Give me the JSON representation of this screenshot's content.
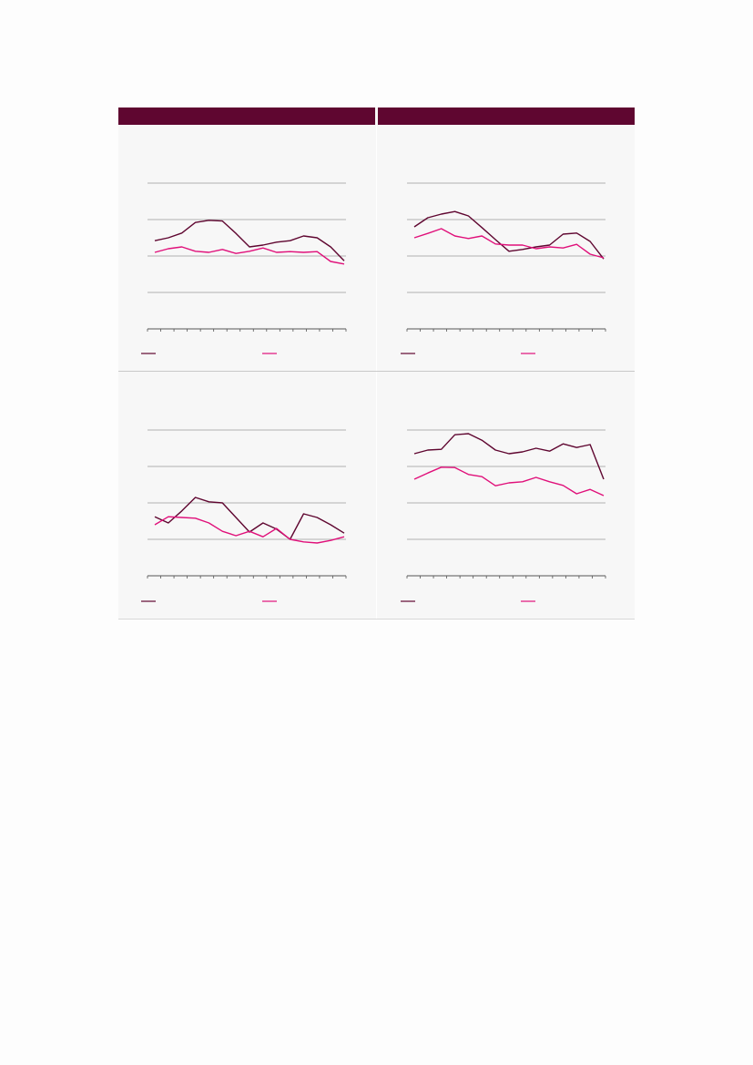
{
  "colors": {
    "header": "#5f0630",
    "series_dark": "#5f0630",
    "series_pink": "#e0107a",
    "grid": "#9a9a9a",
    "axis": "#555555"
  },
  "headers": {
    "left": "",
    "right": ""
  },
  "chart_data": [
    {
      "type": "line",
      "title": "",
      "ylim": [
        0,
        4
      ],
      "yticks": [
        0,
        1,
        2,
        3,
        4
      ],
      "grid": true,
      "x": [
        0,
        1,
        2,
        3,
        4,
        5,
        6,
        7,
        8,
        9,
        10,
        11,
        12,
        13,
        14
      ],
      "legend_position": "bottom",
      "series": [
        {
          "color": "#5f0630",
          "values": [
            2.42,
            2.5,
            2.63,
            2.92,
            2.98,
            2.96,
            2.62,
            2.25,
            2.3,
            2.38,
            2.42,
            2.55,
            2.5,
            2.25,
            1.87
          ]
        },
        {
          "color": "#e0107a",
          "values": [
            2.1,
            2.2,
            2.25,
            2.13,
            2.1,
            2.18,
            2.07,
            2.13,
            2.22,
            2.1,
            2.12,
            2.1,
            2.12,
            1.85,
            1.78
          ]
        }
      ]
    },
    {
      "type": "line",
      "title": "",
      "ylim": [
        0,
        4
      ],
      "yticks": [
        0,
        1,
        2,
        3,
        4
      ],
      "grid": true,
      "x": [
        0,
        1,
        2,
        3,
        4,
        5,
        6,
        7,
        8,
        9,
        10,
        11,
        12,
        13,
        14
      ],
      "legend_position": "bottom",
      "series": [
        {
          "color": "#5f0630",
          "values": [
            2.8,
            3.05,
            3.15,
            3.22,
            3.1,
            2.78,
            2.45,
            2.13,
            2.18,
            2.25,
            2.3,
            2.6,
            2.63,
            2.4,
            1.92
          ]
        },
        {
          "color": "#e0107a",
          "values": [
            2.5,
            2.62,
            2.75,
            2.55,
            2.48,
            2.55,
            2.33,
            2.3,
            2.3,
            2.2,
            2.25,
            2.22,
            2.32,
            2.05,
            1.95
          ]
        }
      ]
    },
    {
      "type": "line",
      "title": "",
      "ylim": [
        0,
        4
      ],
      "yticks": [
        0,
        1,
        2,
        3,
        4
      ],
      "grid": true,
      "x": [
        0,
        1,
        2,
        3,
        4,
        5,
        6,
        7,
        8,
        9,
        10,
        11,
        12,
        13,
        14
      ],
      "legend_position": "bottom",
      "series": [
        {
          "color": "#5f0630",
          "values": [
            1.62,
            1.45,
            1.78,
            2.15,
            2.03,
            2.0,
            1.6,
            1.2,
            1.45,
            1.28,
            1.0,
            1.7,
            1.6,
            1.4,
            1.17
          ]
        },
        {
          "color": "#e0107a",
          "values": [
            1.4,
            1.62,
            1.6,
            1.58,
            1.45,
            1.22,
            1.1,
            1.22,
            1.07,
            1.3,
            1.0,
            0.93,
            0.9,
            0.97,
            1.07
          ]
        }
      ]
    },
    {
      "type": "line",
      "title": "",
      "ylim": [
        0,
        4
      ],
      "yticks": [
        0,
        1,
        2,
        3,
        4
      ],
      "grid": true,
      "x": [
        0,
        1,
        2,
        3,
        4,
        5,
        6,
        7,
        8,
        9,
        10,
        11,
        12,
        13,
        14
      ],
      "legend_position": "bottom",
      "series": [
        {
          "color": "#5f0630",
          "values": [
            3.35,
            3.45,
            3.47,
            3.87,
            3.9,
            3.72,
            3.45,
            3.35,
            3.4,
            3.5,
            3.42,
            3.62,
            3.52,
            3.6,
            2.65
          ]
        },
        {
          "color": "#e0107a",
          "values": [
            2.65,
            2.82,
            2.98,
            2.97,
            2.78,
            2.72,
            2.47,
            2.55,
            2.58,
            2.7,
            2.58,
            2.48,
            2.25,
            2.37,
            2.2
          ]
        }
      ]
    }
  ]
}
